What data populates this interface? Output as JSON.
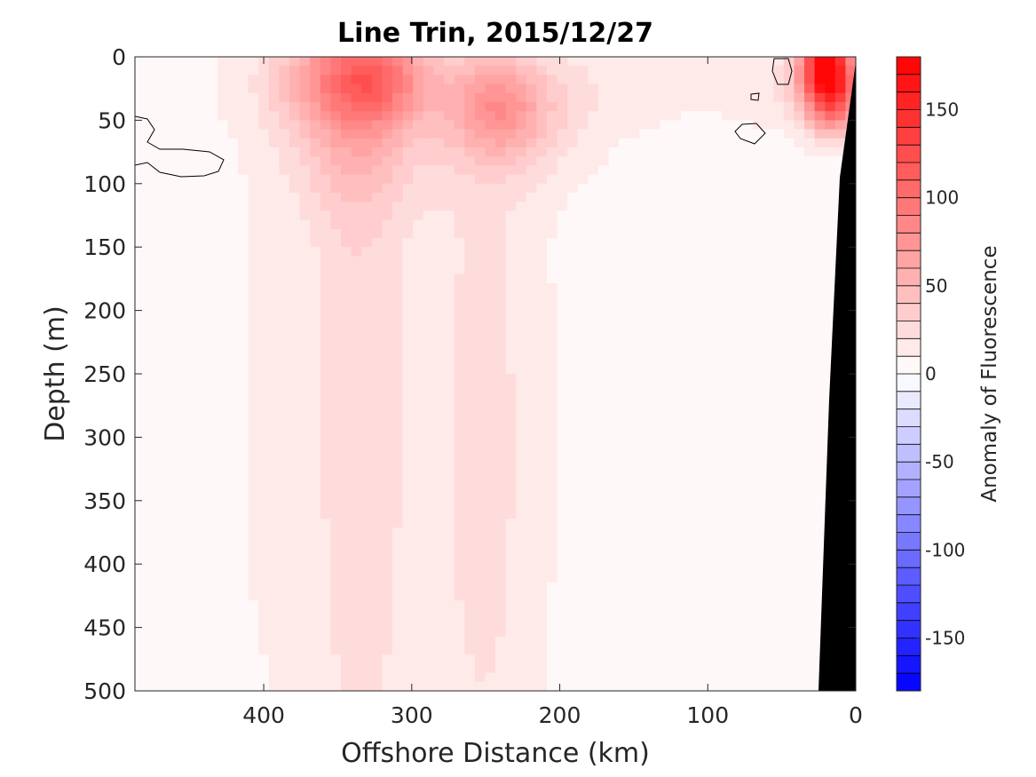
{
  "chart_data": {
    "type": "heatmap",
    "title": "Line Trin, 2015/12/27",
    "xlabel": "Offshore Distance (km)",
    "ylabel": "Depth (m)",
    "colorbar_label": "Anomaly of Fluorescence",
    "xlim": [
      487,
      0
    ],
    "ylim": [
      0,
      500
    ],
    "x_ticks": [
      400,
      300,
      200,
      100,
      0
    ],
    "y_ticks": [
      0,
      50,
      100,
      150,
      200,
      250,
      300,
      350,
      400,
      450,
      500
    ],
    "clim": [
      -180,
      180
    ],
    "colorbar_ticks": [
      150,
      100,
      50,
      0,
      -50,
      -100,
      -150
    ],
    "colorbar_levels": 36,
    "colormap": {
      "low": "#0000ff",
      "mid": "#ffffff",
      "high": "#ff0000"
    },
    "bathymetry_color": "#000000",
    "zero_contour_color": "#000000",
    "field": [
      {
        "x": 355,
        "y": 15,
        "value": 45,
        "sx": 28,
        "sy": 30
      },
      {
        "x": 320,
        "y": 15,
        "value": 50,
        "sx": 22,
        "sy": 25
      },
      {
        "x": 340,
        "y": 60,
        "value": 30,
        "sx": 30,
        "sy": 50
      },
      {
        "x": 240,
        "y": 40,
        "value": 35,
        "sx": 20,
        "sy": 25
      },
      {
        "x": 230,
        "y": 50,
        "value": 20,
        "sx": 35,
        "sy": 35
      },
      {
        "x": 280,
        "y": 30,
        "value": 15,
        "sx": 50,
        "sy": 40
      },
      {
        "x": 20,
        "y": 5,
        "value": 150,
        "sx": 12,
        "sy": 18
      },
      {
        "x": 15,
        "y": 35,
        "value": 100,
        "sx": 14,
        "sy": 20
      },
      {
        "x": 45,
        "y": 25,
        "value": 15,
        "sx": 30,
        "sy": 25
      },
      {
        "x": 335,
        "y": 300,
        "value": 18,
        "sx": 22,
        "sy": 300
      },
      {
        "x": 250,
        "y": 320,
        "value": 14,
        "sx": 25,
        "sy": 300
      },
      {
        "x": 300,
        "y": 280,
        "value": 10,
        "sx": 70,
        "sy": 320
      },
      {
        "x": 400,
        "y": 300,
        "value": 8,
        "sx": 30,
        "sy": 300
      },
      {
        "x": 150,
        "y": 300,
        "value": 5,
        "sx": 80,
        "sy": 300
      },
      {
        "x": 460,
        "y": 20,
        "value": 6,
        "sx": 40,
        "sy": 40
      },
      {
        "x": 150,
        "y": 20,
        "value": 10,
        "sx": 60,
        "sy": 30
      }
    ]
  }
}
